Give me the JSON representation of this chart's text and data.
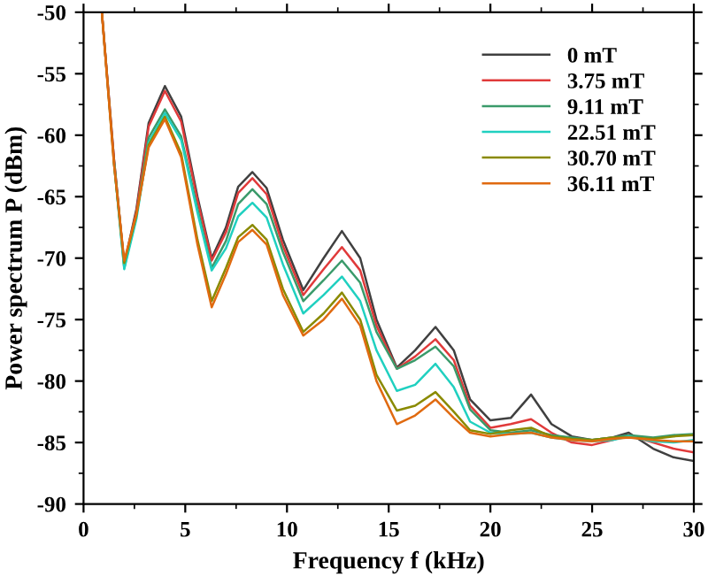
{
  "chart_data": {
    "type": "line",
    "xlabel": "Frequency f (kHz)",
    "ylabel": "Power spectrum P (dBm)",
    "x": [
      0.9,
      1.5,
      2.0,
      2.6,
      3.2,
      4.0,
      4.8,
      5.6,
      6.3,
      7.0,
      7.6,
      8.3,
      9.0,
      9.8,
      10.8,
      11.8,
      12.7,
      13.6,
      14.4,
      15.4,
      16.3,
      17.3,
      18.2,
      19.0,
      20.0,
      21.0,
      22.0,
      23.0,
      24.0,
      25.0,
      26.0,
      26.8,
      28.0,
      29.0,
      30.0
    ],
    "series": [
      {
        "name": "0 mT",
        "color": "#404040",
        "values": [
          -50,
          -62,
          -70.5,
          -66,
          -59,
          -56.0,
          -58.5,
          -65,
          -70.0,
          -67.5,
          -64.2,
          -63.0,
          -64.3,
          -68.5,
          -72.6,
          -70,
          -67.8,
          -70,
          -75,
          -78.9,
          -77.5,
          -75.6,
          -77.5,
          -81.5,
          -83.2,
          -83.0,
          -81.1,
          -83.5,
          -84.5,
          -84.8,
          -84.6,
          -84.2,
          -85.5,
          -86.2,
          -86.5
        ]
      },
      {
        "name": "3.75 mT",
        "color": "#e03a3a",
        "values": [
          -50,
          -62,
          -70.6,
          -66.2,
          -59.3,
          -56.4,
          -58.9,
          -65.3,
          -70.2,
          -67.9,
          -64.7,
          -63.5,
          -64.8,
          -69,
          -73.0,
          -70.9,
          -69.1,
          -71,
          -75.5,
          -79.0,
          -78,
          -76.6,
          -78.3,
          -82,
          -83.8,
          -83.5,
          -83.1,
          -84.2,
          -85.0,
          -85.2,
          -84.8,
          -84.4,
          -85.0,
          -85.5,
          -85.8
        ]
      },
      {
        "name": "9.11 mT",
        "color": "#3a9a6a",
        "values": [
          null,
          -62.2,
          -70.8,
          -66.5,
          -60.2,
          -57.9,
          -60.1,
          -66,
          -70.8,
          -68.6,
          -65.6,
          -64.4,
          -65.6,
          -69.5,
          -73.5,
          -71.8,
          -70.2,
          -72,
          -76,
          -79.0,
          -78.3,
          -77.2,
          -78.8,
          -82.3,
          -84.0,
          -84.2,
          -84.0,
          -84.4,
          -84.6,
          -84.8,
          -84.6,
          -84.4,
          -84.6,
          -84.4,
          -84.3
        ]
      },
      {
        "name": "22.51 mT",
        "color": "#20d0c0",
        "values": [
          null,
          -62.3,
          -70.9,
          -66.8,
          -60.6,
          -58.2,
          -60.4,
          -66.3,
          -71.0,
          -69.2,
          -66.6,
          -65.5,
          -66.7,
          -70.5,
          -74.5,
          -73,
          -71.5,
          -73.5,
          -77.5,
          -80.8,
          -80.3,
          -78.6,
          -80.5,
          -83.3,
          -84.2,
          -84.3,
          -84.2,
          -84.6,
          -84.8,
          -84.9,
          -84.8,
          -84.5,
          -84.9,
          -85.0,
          -84.8
        ]
      },
      {
        "name": "30.70 mT",
        "color": "#8a8a00",
        "values": [
          -50,
          -62.4,
          -70.4,
          -66.5,
          -60.8,
          -58.5,
          -61.5,
          -68.5,
          -73.5,
          -70.8,
          -68.3,
          -67.3,
          -68.5,
          -72.5,
          -76.0,
          -74.5,
          -72.8,
          -75,
          -79.5,
          -82.4,
          -82.0,
          -80.9,
          -82.5,
          -84.0,
          -84.3,
          -84.0,
          -83.8,
          -84.5,
          -84.7,
          -84.8,
          -84.6,
          -84.6,
          -84.7,
          -84.5,
          -84.4
        ]
      },
      {
        "name": "36.11 mT",
        "color": "#e06a10",
        "values": [
          -50,
          -62.4,
          -70.2,
          -66.4,
          -61,
          -58.7,
          -61.8,
          -68.9,
          -74.0,
          -71.3,
          -68.7,
          -67.7,
          -68.9,
          -73,
          -76.3,
          -75,
          -73.3,
          -75.5,
          -80,
          -83.5,
          -82.8,
          -81.5,
          -83,
          -84.2,
          -84.5,
          -84.3,
          -84.2,
          -84.6,
          -84.8,
          -84.9,
          -84.7,
          -84.6,
          -84.8,
          -84.9,
          -84.9
        ]
      }
    ],
    "xlim": [
      0,
      30
    ],
    "xticks": [
      0,
      5,
      10,
      15,
      20,
      25,
      30
    ],
    "ylim": [
      -90,
      -50
    ],
    "yticks": [
      -90,
      -85,
      -80,
      -75,
      -70,
      -65,
      -60,
      -55,
      -50
    ],
    "legend": "top right",
    "grid": false,
    "marker": "none",
    "line_style": "solid"
  }
}
